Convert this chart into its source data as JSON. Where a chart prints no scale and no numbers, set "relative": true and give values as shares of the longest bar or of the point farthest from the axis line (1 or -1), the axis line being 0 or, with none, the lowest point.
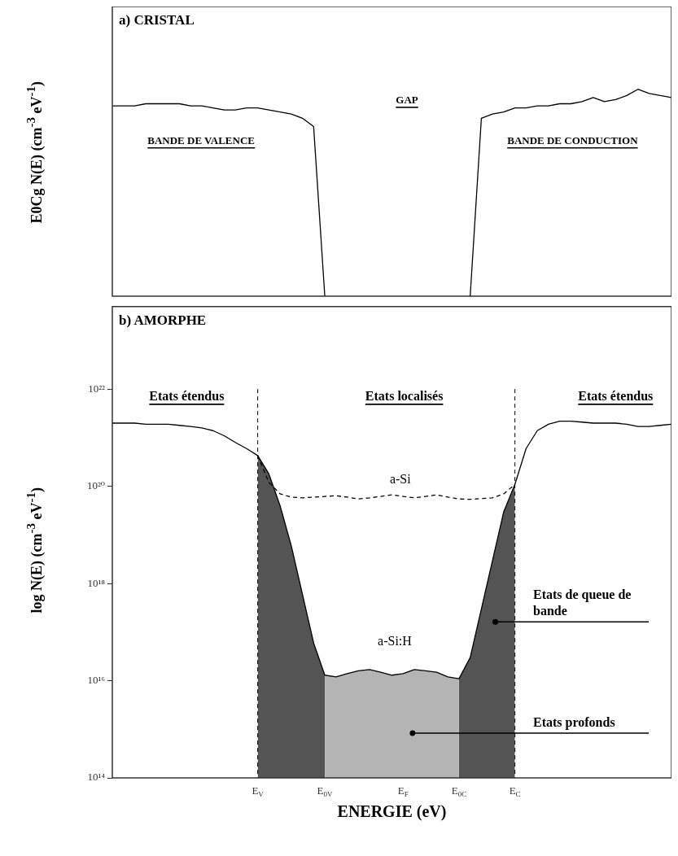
{
  "chart_data": [
    {
      "type": "line",
      "title": "a) CRISTAL",
      "ylabel": "E0Cg N(E)  (cm$^{-3}$ eV$^{-1}$)",
      "relative": true,
      "tick_labels": false,
      "categories": [
        null,
        null,
        null,
        null,
        null,
        null,
        null,
        null,
        null,
        null,
        null,
        null,
        null,
        null,
        null,
        null,
        null,
        null,
        null,
        null,
        null,
        null,
        null,
        null,
        null,
        null,
        null,
        null,
        null,
        null,
        null,
        null,
        null,
        null,
        null,
        null,
        null,
        null,
        null,
        null,
        null,
        null,
        null,
        null,
        null,
        null,
        null,
        null,
        null,
        null,
        null
      ],
      "series": [
        {
          "color": "#000000",
          "values": [
            0.92,
            0.92,
            0.92,
            0.93,
            0.93,
            0.93,
            0.93,
            0.92,
            0.92,
            0.91,
            0.9,
            0.9,
            0.91,
            0.91,
            0.9,
            0.89,
            0.88,
            0.86,
            0.82,
            0,
            null,
            null,
            null,
            null,
            null,
            null,
            null,
            null,
            null,
            null,
            null,
            null,
            null,
            null,
            null,
            null,
            null,
            null,
            null,
            null,
            null,
            null,
            null,
            null,
            null,
            null,
            null,
            null,
            null,
            null,
            null
          ]
        },
        {
          "color": "#000000",
          "values": [
            null,
            null,
            null,
            null,
            null,
            null,
            null,
            null,
            null,
            null,
            null,
            null,
            null,
            null,
            null,
            null,
            null,
            null,
            null,
            null,
            null,
            null,
            null,
            null,
            null,
            null,
            null,
            null,
            null,
            null,
            null,
            null,
            0,
            0.86,
            0.88,
            0.89,
            0.91,
            0.91,
            0.92,
            0.92,
            0.93,
            0.93,
            0.94,
            0.96,
            0.94,
            0.95,
            0.97,
            1,
            0.98,
            0.97,
            0.96
          ]
        }
      ],
      "annotations": [
        "BANDE DE VALENCE",
        "GAP",
        "BANDE DE CONDUCTION"
      ]
    },
    {
      "type": "area",
      "title": "b) AMORPHE",
      "xlabel": "ENERGIE  (eV)",
      "ylabel": "log N(E)  (cm$^{-3}$ eV$^{-1}$)",
      "log": "y",
      "ylim": [
        100000000000000.0,
        5e+23
      ],
      "yticks": [
        {
          "value": 100000000000000.0,
          "label": "10¹⁴"
        },
        {
          "value": 1e+16,
          "label": "10¹⁶"
        },
        {
          "value": 1e+18,
          "label": "10¹⁸"
        },
        {
          "value": 1e+20,
          "label": "10²⁰"
        },
        {
          "value": 1e+22,
          "label": "10²²"
        }
      ],
      "categories": [
        null,
        null,
        null,
        null,
        null,
        null,
        null,
        null,
        null,
        null,
        null,
        null,
        null,
        "E$_{V}$",
        null,
        null,
        null,
        null,
        null,
        "E$_{0V}$",
        null,
        null,
        null,
        null,
        null,
        null,
        "E$_{F}$",
        null,
        null,
        null,
        null,
        "E$_{0C}$",
        null,
        null,
        null,
        null,
        "E$_{C}$",
        null,
        null,
        null,
        null,
        null,
        null,
        null,
        null,
        null,
        null,
        null,
        null,
        null,
        null
      ],
      "series": [
        {
          "color": "#3a3a3a",
          "values": [
            null,
            null,
            null,
            null,
            null,
            null,
            null,
            null,
            null,
            null,
            null,
            null,
            null,
            4.3e+20,
            1.8e+20,
            4e+19,
            6e+18,
            6e+17,
            6e+16,
            1.3e+16,
            null,
            null,
            null,
            null,
            null,
            null,
            null,
            null,
            null,
            null,
            null,
            null,
            null,
            null,
            null,
            null,
            null,
            null,
            null,
            null,
            null,
            null,
            null,
            null,
            null,
            null,
            null,
            null,
            null,
            null,
            null
          ]
        },
        {
          "color": "#a8a8a8",
          "values": [
            null,
            null,
            null,
            null,
            null,
            null,
            null,
            null,
            null,
            null,
            null,
            null,
            null,
            null,
            null,
            null,
            null,
            null,
            null,
            1.3e+16,
            1.2e+16,
            1.4e+16,
            1.6e+16,
            1.7e+16,
            1.5e+16,
            1.3e+16,
            1.4e+16,
            1.7e+16,
            1.6e+16,
            1.5e+16,
            1.2e+16,
            1.1e+16,
            null,
            null,
            null,
            null,
            null,
            null,
            null,
            null,
            null,
            null,
            null,
            null,
            null,
            null,
            null,
            null,
            null,
            null,
            null
          ]
        },
        {
          "color": "#3a3a3a",
          "values": [
            null,
            null,
            null,
            null,
            null,
            null,
            null,
            null,
            null,
            null,
            null,
            null,
            null,
            null,
            null,
            null,
            null,
            null,
            null,
            null,
            null,
            null,
            null,
            null,
            null,
            null,
            null,
            null,
            null,
            null,
            null,
            1.1e+16,
            3e+16,
            3e+17,
            3e+18,
            3e+19,
            1.1e+20,
            null,
            null,
            null,
            null,
            null,
            null,
            null,
            null,
            null,
            null,
            null,
            null,
            null,
            null
          ]
        },
        {
          "type": "line",
          "color": "#000000",
          "values": [
            2e+21,
            2e+21,
            2e+21,
            1.9e+21,
            1.9e+21,
            1.9e+21,
            1.8e+21,
            1.7e+21,
            1.6e+21,
            1.4e+21,
            1.1e+21,
            8e+20,
            6e+20,
            4.3e+20,
            1.8e+20,
            4e+19,
            6e+18,
            6e+17,
            6e+16,
            1.3e+16,
            1.2e+16,
            1.4e+16,
            1.6e+16,
            1.7e+16,
            1.5e+16,
            1.3e+16,
            1.4e+16,
            1.7e+16,
            1.6e+16,
            1.5e+16,
            1.2e+16,
            1.1e+16,
            3e+16,
            3e+17,
            3e+18,
            3e+19,
            1.1e+20,
            6e+20,
            1.4e+21,
            1.9e+21,
            2.2e+21,
            2.2e+21,
            2.1e+21,
            2e+21,
            2e+21,
            2e+21,
            1.9e+21,
            1.7e+21,
            1.7e+21,
            1.8e+21,
            1.9e+21
          ]
        },
        {
          "type": "line",
          "color": "#000000",
          "line_style": "dashed",
          "values": [
            null,
            null,
            null,
            null,
            null,
            null,
            null,
            null,
            null,
            null,
            null,
            null,
            null,
            4.3e+20,
            1.2e+20,
            7e+19,
            6e+19,
            5.8e+19,
            6e+19,
            6.2e+19,
            6.4e+19,
            6e+19,
            5.5e+19,
            5.8e+19,
            6.2e+19,
            6.7e+19,
            6.2e+19,
            5.8e+19,
            6.2e+19,
            6.7e+19,
            6e+19,
            5.5e+19,
            5.4e+19,
            5.6e+19,
            5.8e+19,
            7e+19,
            1.1e+20,
            null,
            null,
            null,
            null,
            null,
            null,
            null,
            null,
            null,
            null,
            null,
            null,
            null,
            null
          ]
        }
      ],
      "ref_lines": [
        {
          "axis": "x",
          "value": "E$_{V}$",
          "line_style": "dashed"
        },
        {
          "axis": "x",
          "value": "E$_{C}$",
          "line_style": "dashed"
        }
      ],
      "annotations": [
        "Etats étendus",
        "Etats localisés",
        "Etats étendus",
        "a-Si",
        "a-Si:H",
        "Etats de queue de bande",
        "Etats profonds"
      ]
    }
  ]
}
